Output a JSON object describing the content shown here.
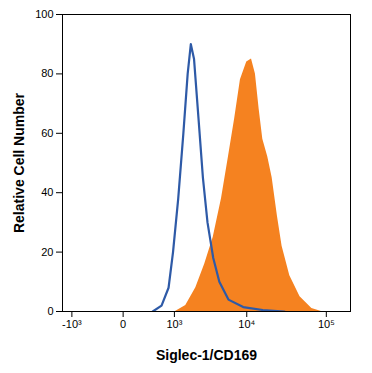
{
  "chart_data": {
    "type": "histogram",
    "x_label": "Siglec-1/CD169",
    "y_label": "Relative Cell Number",
    "log": "x",
    "grid": false,
    "xlim": [
      -1400,
      200000
    ],
    "ylim": [
      0,
      100
    ],
    "xticks": [
      {
        "value": -1000,
        "label": "-10³"
      },
      0,
      {
        "value": 1000,
        "label": "10³"
      },
      {
        "value": 10000,
        "label": "10⁴"
      },
      {
        "value": 100000,
        "label": "10⁵"
      }
    ],
    "yticks": [
      0,
      20,
      40,
      60,
      80,
      100
    ],
    "series": [
      {
        "type": "area",
        "color": "#f58220",
        "x": [
          1040,
          1500,
          2100,
          2800,
          3650,
          4700,
          5800,
          7000,
          8300,
          10000,
          11500,
          12900,
          14400,
          16000,
          18500,
          21000,
          24500,
          28000,
          35000,
          47000,
          66000,
          87000
        ],
        "values": [
          0,
          2,
          8,
          16,
          25,
          38,
          52,
          65,
          78,
          84,
          85,
          80,
          68,
          58,
          52,
          45,
          32,
          22,
          12,
          5,
          1,
          0
        ]
      },
      {
        "type": "line",
        "color": "#2e5aa7",
        "x": [
          400,
          600,
          800,
          950,
          1150,
          1380,
          1600,
          1780,
          1980,
          2290,
          2640,
          3050,
          3650,
          4400,
          5800,
          9000,
          16000,
          30000
        ],
        "values": [
          0,
          2,
          8,
          20,
          38,
          60,
          80,
          90,
          85,
          65,
          45,
          30,
          18,
          10,
          4,
          1.5,
          0.5,
          0
        ]
      }
    ]
  }
}
